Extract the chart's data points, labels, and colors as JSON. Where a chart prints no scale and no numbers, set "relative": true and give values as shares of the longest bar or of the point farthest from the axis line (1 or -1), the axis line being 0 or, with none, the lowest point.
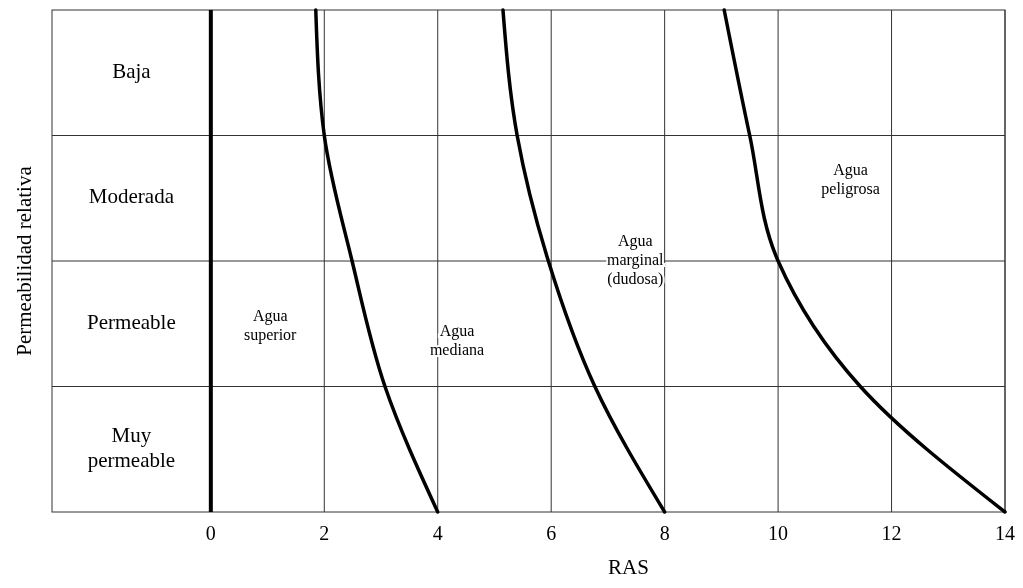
{
  "chart_data": {
    "type": "line",
    "relative": true,
    "xlabel": "RAS",
    "ylabel": "Permeabilidad relativa",
    "xlim": [
      -2.8,
      14
    ],
    "xticks": [
      0,
      2,
      4,
      6,
      8,
      10,
      12,
      14
    ],
    "grid": "x",
    "y_categories": [
      "Baja",
      "Moderada",
      "Permeable",
      "Muy\npermeable"
    ],
    "series": [
      {
        "color": "#000000",
        "x": [
          1.85,
          2,
          2.49,
          3.07,
          4
        ],
        "values": [
          1,
          0.75,
          0.5,
          0.25,
          0
        ]
      },
      {
        "color": "#000000",
        "x": [
          5.15,
          5.4,
          5.95,
          6.77,
          8
        ],
        "values": [
          1,
          0.75,
          0.5,
          0.25,
          0
        ]
      },
      {
        "color": "#000000",
        "x": [
          9.05,
          9.5,
          10,
          11.45,
          14
        ],
        "values": [
          1,
          0.75,
          0.5,
          0.25,
          0
        ]
      }
    ],
    "ref_lines": [
      {
        "axis": "x",
        "value": 0,
        "color": "#000000"
      }
    ],
    "annotations": [
      "Agua\nsuperior",
      "Agua\nmediana",
      "Agua\nmarginal\n(dudosa)",
      "Agua\npeligrosa"
    ]
  }
}
